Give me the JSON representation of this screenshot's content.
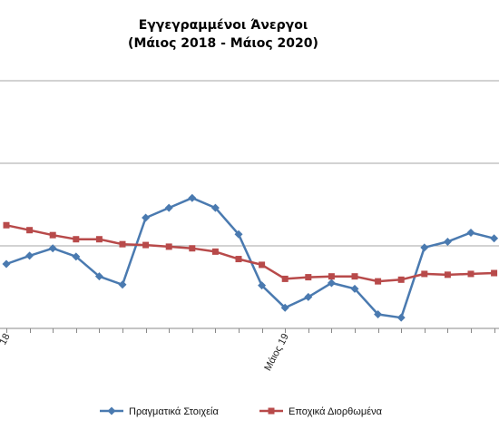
{
  "chart_data": {
    "type": "line",
    "title_line1": "Εγγεγραμμένοι Άνεργοι",
    "title_line2": "(Μάιος 2018 - Μάιος 2020)",
    "x_tick_labels": [
      {
        "index": 0,
        "text": "18"
      },
      {
        "index": 12,
        "text": "Μάιος 19"
      }
    ],
    "ylim": [
      0,
      3
    ],
    "y_gridlines": [
      1,
      2,
      3
    ],
    "series": [
      {
        "name": "Πραγματικά Στοιχεία",
        "color": "#4a7ab0",
        "marker": "diamond",
        "values": [
          0.78,
          0.88,
          0.97,
          0.87,
          0.63,
          0.53,
          1.34,
          1.46,
          1.58,
          1.46,
          1.14,
          0.52,
          0.25,
          0.38,
          0.55,
          0.48,
          0.17,
          0.13,
          0.98,
          1.05,
          1.16,
          1.09
        ]
      },
      {
        "name": "Εποχικά Διορθωμένα",
        "color": "#b84a4a",
        "marker": "square",
        "values": [
          1.25,
          1.19,
          1.13,
          1.08,
          1.08,
          1.02,
          1.01,
          0.99,
          0.97,
          0.93,
          0.84,
          0.77,
          0.6,
          0.62,
          0.63,
          0.63,
          0.57,
          0.59,
          0.66,
          0.65,
          0.66,
          0.67
        ]
      }
    ],
    "legend_position": "bottom",
    "grid": true
  }
}
